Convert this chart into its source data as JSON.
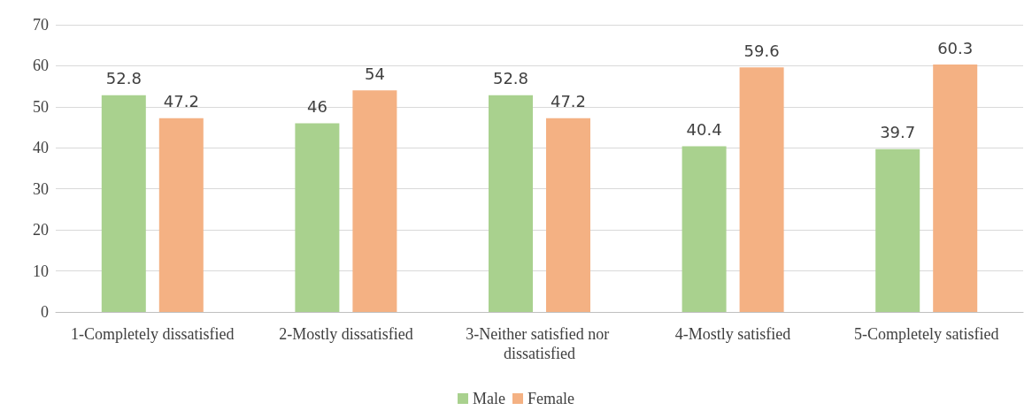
{
  "chart_data": {
    "type": "bar",
    "categories": [
      "1-Completely dissatisfied",
      "2-Mostly dissatisfied",
      "3-Neither satisfied nor dissatisfied",
      "4-Mostly satisfied",
      "5-Completely satisfied"
    ],
    "series": [
      {
        "name": "Male",
        "color": "#a9d18e",
        "values": [
          52.8,
          46,
          52.8,
          40.4,
          39.7
        ]
      },
      {
        "name": "Female",
        "color": "#f4b183",
        "values": [
          47.2,
          54,
          47.2,
          59.6,
          60.3
        ]
      }
    ],
    "ylim": [
      0,
      70
    ],
    "yticks": [
      0,
      10,
      20,
      30,
      40,
      50,
      60,
      70
    ],
    "grid": "y",
    "legend": "bottom",
    "data_labels": true
  }
}
